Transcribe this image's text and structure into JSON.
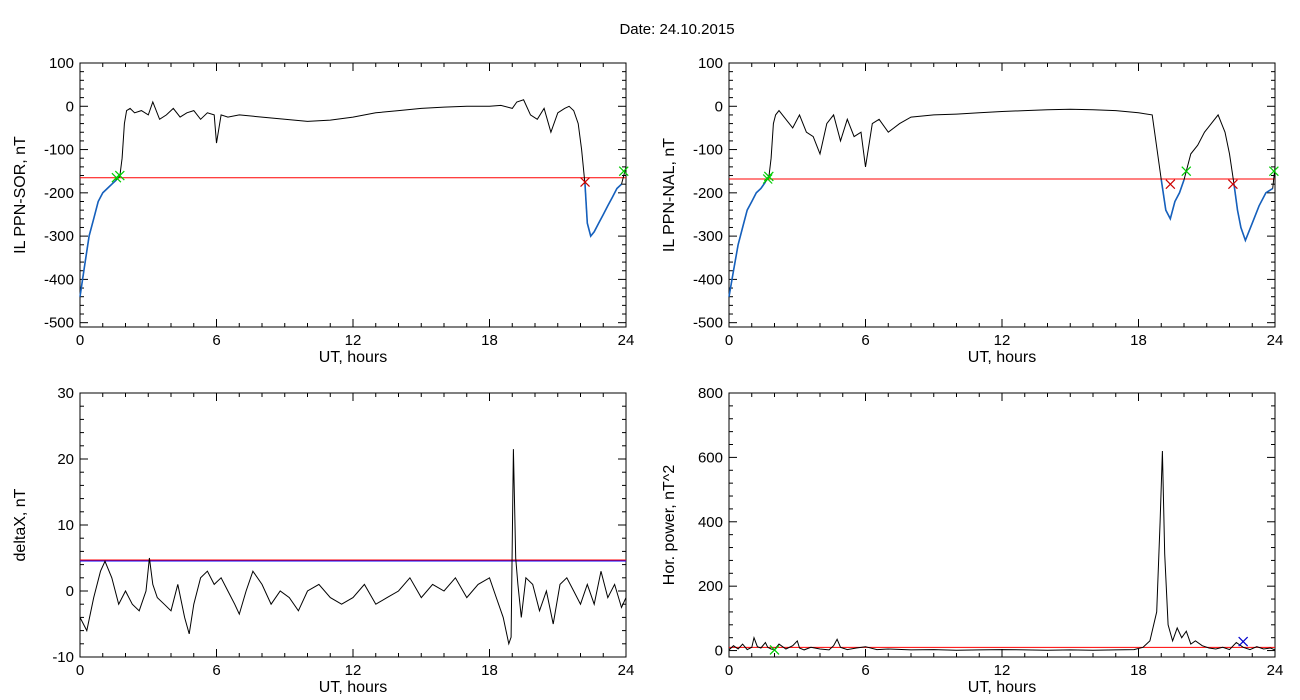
{
  "title": "Date:  24.10.2015",
  "colors": {
    "trace": "#000000",
    "threshold": "#ff0000",
    "threshold_alt": "#0000ff",
    "below": "#1560bd",
    "cross_red": "#cc0000",
    "cross_green": "#00cc00",
    "cross_blue": "#0000cc"
  },
  "chart_data": [
    {
      "type": "line",
      "xlabel": "UT, hours",
      "ylabel": "IL PPN-SOR, nT",
      "xlim": [
        0,
        24
      ],
      "ylim": [
        -510,
        100
      ],
      "xticks": [
        0,
        6,
        12,
        18,
        24
      ],
      "yticks": [
        100,
        0,
        -100,
        -200,
        -300,
        -400,
        -500
      ],
      "threshold": -165,
      "series": [
        {
          "color_key": "trace",
          "x": [
            0,
            0.2,
            0.4,
            0.6,
            0.8,
            1.0,
            1.2,
            1.4,
            1.6,
            1.75,
            1.85,
            1.95,
            2.05,
            2.2,
            2.4,
            2.7,
            3.0,
            3.2,
            3.5,
            3.8,
            4.1,
            4.4,
            4.7,
            5.0,
            5.3,
            5.6,
            5.9,
            6.0,
            6.2,
            6.5,
            7,
            8,
            9,
            10,
            11,
            12,
            13,
            14,
            15,
            16,
            17,
            18,
            18.5,
            19.0,
            19.2,
            19.5,
            19.8,
            20.1,
            20.4,
            20.7,
            21.0,
            21.3,
            21.5,
            21.7,
            21.9,
            22.05,
            22.2,
            22.3,
            22.45,
            22.6,
            22.8,
            23.0,
            23.2,
            23.4,
            23.6,
            23.8,
            24
          ],
          "y": [
            -440,
            -370,
            -300,
            -260,
            -220,
            -200,
            -190,
            -180,
            -170,
            -162,
            -120,
            -40,
            -10,
            -5,
            -15,
            -10,
            -20,
            10,
            -30,
            -20,
            -5,
            -25,
            -15,
            -10,
            -30,
            -15,
            -20,
            -85,
            -20,
            -25,
            -20,
            -25,
            -30,
            -35,
            -32,
            -25,
            -15,
            -10,
            -5,
            -2,
            0,
            0,
            2,
            -5,
            10,
            15,
            -20,
            -30,
            -5,
            -60,
            -15,
            -5,
            0,
            -10,
            -40,
            -100,
            -180,
            -270,
            -300,
            -290,
            -270,
            -250,
            -230,
            -210,
            -190,
            -180,
            -140
          ]
        }
      ],
      "markers": [
        {
          "x": 1.6,
          "y": -165,
          "color_key": "cross_green"
        },
        {
          "x": 1.75,
          "y": -160,
          "color_key": "cross_green"
        },
        {
          "x": 22.2,
          "y": -175,
          "color_key": "cross_red"
        },
        {
          "x": 23.9,
          "y": -150,
          "color_key": "cross_green"
        }
      ]
    },
    {
      "type": "line",
      "xlabel": "UT, hours",
      "ylabel": "IL PPN-NAL, nT",
      "xlim": [
        0,
        24
      ],
      "ylim": [
        -510,
        100
      ],
      "xticks": [
        0,
        6,
        12,
        18,
        24
      ],
      "yticks": [
        100,
        0,
        -100,
        -200,
        -300,
        -400,
        -500
      ],
      "threshold": -168,
      "series": [
        {
          "color_key": "trace",
          "x": [
            0,
            0.2,
            0.4,
            0.6,
            0.8,
            1.0,
            1.2,
            1.4,
            1.6,
            1.75,
            1.85,
            1.95,
            2.05,
            2.2,
            2.5,
            2.8,
            3.1,
            3.4,
            3.7,
            4.0,
            4.3,
            4.6,
            4.9,
            5.2,
            5.5,
            5.8,
            6.0,
            6.3,
            6.6,
            7.0,
            7.5,
            8,
            9,
            10,
            11,
            12,
            13,
            14,
            15,
            16,
            17,
            18,
            18.6,
            19.0,
            19.2,
            19.4,
            19.6,
            19.8,
            20.0,
            20.3,
            20.6,
            20.9,
            21.2,
            21.5,
            21.8,
            22.0,
            22.2,
            22.35,
            22.5,
            22.7,
            23.0,
            23.3,
            23.6,
            23.9,
            24
          ],
          "y": [
            -440,
            -380,
            -320,
            -280,
            -240,
            -220,
            -200,
            -190,
            -175,
            -165,
            -120,
            -40,
            -20,
            -10,
            -30,
            -50,
            -20,
            -60,
            -70,
            -110,
            -40,
            -20,
            -80,
            -30,
            -70,
            -60,
            -140,
            -40,
            -30,
            -60,
            -40,
            -25,
            -20,
            -18,
            -15,
            -12,
            -10,
            -8,
            -7,
            -8,
            -10,
            -15,
            -20,
            -170,
            -240,
            -260,
            -220,
            -200,
            -170,
            -110,
            -90,
            -60,
            -40,
            -20,
            -60,
            -110,
            -180,
            -240,
            -280,
            -310,
            -270,
            -230,
            -200,
            -190,
            -140
          ]
        }
      ],
      "markers": [
        {
          "x": 1.7,
          "y": -168,
          "color_key": "cross_green"
        },
        {
          "x": 1.75,
          "y": -162,
          "color_key": "cross_green"
        },
        {
          "x": 19.4,
          "y": -180,
          "color_key": "cross_red"
        },
        {
          "x": 20.1,
          "y": -150,
          "color_key": "cross_green"
        },
        {
          "x": 22.15,
          "y": -180,
          "color_key": "cross_red"
        },
        {
          "x": 23.95,
          "y": -150,
          "color_key": "cross_green"
        }
      ]
    },
    {
      "type": "line",
      "xlabel": "UT, hours",
      "ylabel": "deltaX, nT",
      "xlim": [
        0,
        24
      ],
      "ylim": [
        -10,
        30
      ],
      "xticks": [
        0,
        6,
        12,
        18,
        24
      ],
      "yticks": [
        30,
        20,
        10,
        0,
        -10
      ],
      "threshold": 4.7,
      "series": [
        {
          "color_key": "trace",
          "x": [
            0,
            0.3,
            0.6,
            0.9,
            1.1,
            1.4,
            1.7,
            2.0,
            2.3,
            2.6,
            2.9,
            3.05,
            3.2,
            3.4,
            3.7,
            4.0,
            4.3,
            4.6,
            4.8,
            5.0,
            5.3,
            5.6,
            5.9,
            6.2,
            6.5,
            6.8,
            7.0,
            7.3,
            7.6,
            8.0,
            8.4,
            8.8,
            9.2,
            9.6,
            10.0,
            10.5,
            11.0,
            11.5,
            12.0,
            12.5,
            13.0,
            13.5,
            14.0,
            14.5,
            15.0,
            15.5,
            16.0,
            16.5,
            17.0,
            17.5,
            18.0,
            18.3,
            18.6,
            18.85,
            18.95,
            19.05,
            19.15,
            19.25,
            19.4,
            19.6,
            19.9,
            20.2,
            20.5,
            20.8,
            21.1,
            21.4,
            21.7,
            22.0,
            22.3,
            22.6,
            22.9,
            23.2,
            23.5,
            23.8,
            24
          ],
          "y": [
            -4,
            -6,
            -1,
            3,
            4.5,
            2,
            -2,
            0,
            -2,
            -3,
            0,
            5,
            1,
            -1,
            -2,
            -3,
            1,
            -4,
            -6.5,
            -2,
            2,
            3,
            1,
            2,
            0,
            -2,
            -3.5,
            0,
            3,
            1,
            -2,
            0,
            -1,
            -3,
            0,
            1,
            -1,
            -2,
            -1,
            1,
            -2,
            -1,
            0,
            2,
            -1,
            1,
            0,
            2,
            -1,
            1,
            2,
            -1,
            -4,
            -8,
            -7,
            21.5,
            5,
            1,
            -4,
            2,
            1,
            -3,
            0,
            -5,
            1,
            2,
            0,
            -2,
            1,
            -2,
            3,
            -1,
            1,
            -2.5,
            -1
          ]
        }
      ],
      "markers": []
    },
    {
      "type": "line",
      "xlabel": "UT, hours",
      "ylabel": "Hor. power, nT^2",
      "xlim": [
        0,
        24
      ],
      "ylim": [
        -20,
        800
      ],
      "xticks": [
        0,
        6,
        12,
        18,
        24
      ],
      "yticks": [
        800,
        600,
        400,
        200,
        0
      ],
      "threshold": 10,
      "series": [
        {
          "color_key": "trace",
          "x": [
            0,
            0.2,
            0.4,
            0.6,
            0.8,
            1.0,
            1.1,
            1.25,
            1.4,
            1.6,
            1.7,
            1.85,
            2.0,
            2.2,
            2.5,
            2.8,
            3.0,
            3.1,
            3.3,
            3.6,
            4.0,
            4.4,
            4.6,
            4.75,
            4.9,
            5.2,
            5.6,
            6.0,
            6.5,
            7.0,
            8.0,
            9.0,
            10.0,
            11.0,
            12.0,
            13.0,
            14.0,
            15.0,
            16.0,
            17.0,
            17.8,
            18.2,
            18.5,
            18.8,
            18.95,
            19.05,
            19.15,
            19.3,
            19.5,
            19.7,
            19.9,
            20.1,
            20.3,
            20.5,
            20.8,
            21.1,
            21.4,
            21.7,
            22.0,
            22.3,
            22.6,
            22.9,
            23.2,
            23.5,
            23.8,
            24
          ],
          "y": [
            2,
            15,
            5,
            20,
            3,
            10,
            40,
            12,
            8,
            25,
            10,
            5,
            3,
            20,
            5,
            15,
            30,
            8,
            2,
            10,
            5,
            2,
            15,
            35,
            10,
            3,
            8,
            12,
            3,
            5,
            2,
            3,
            1,
            2,
            3,
            2,
            1,
            2,
            1,
            2,
            3,
            10,
            30,
            120,
            400,
            620,
            300,
            80,
            30,
            70,
            40,
            60,
            20,
            30,
            15,
            8,
            5,
            10,
            3,
            25,
            10,
            3,
            12,
            5,
            8,
            2
          ]
        }
      ],
      "markers": [
        {
          "x": 2.0,
          "y": 2,
          "color_key": "cross_green"
        },
        {
          "x": 22.6,
          "y": 28,
          "color_key": "cross_blue"
        }
      ]
    }
  ]
}
